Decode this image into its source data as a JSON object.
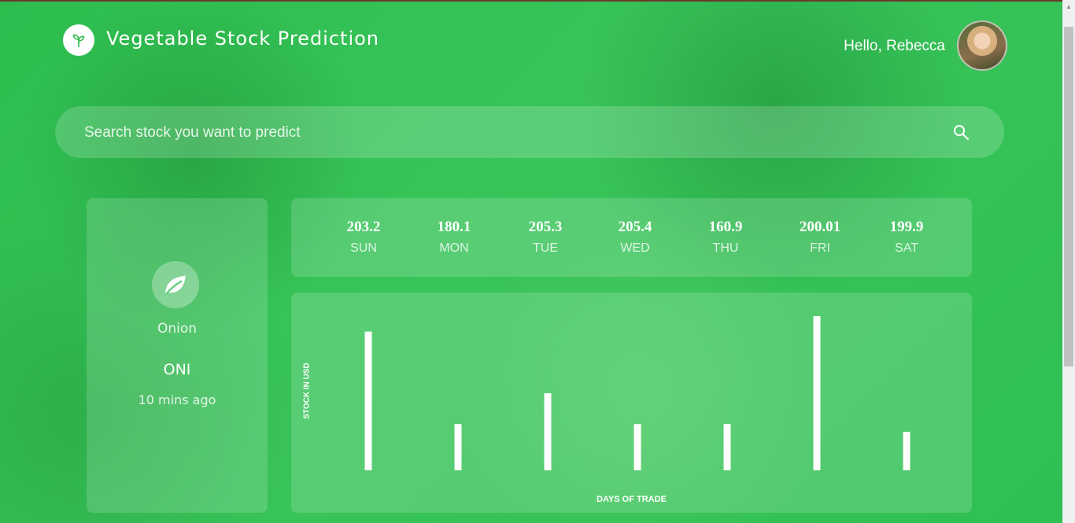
{
  "header": {
    "app_title": "Vegetable Stock Prediction",
    "logo_icon": "sprout-icon",
    "greeting": "Hello, Rebecca"
  },
  "search": {
    "placeholder": "Search stock you want to predict",
    "icon": "search-icon"
  },
  "stock": {
    "icon": "leaf-icon",
    "name": "Onion",
    "code": "ONI",
    "updated": "10 mins ago"
  },
  "days": [
    {
      "value": "203.2",
      "label": "SUN"
    },
    {
      "value": "180.1",
      "label": "MON"
    },
    {
      "value": "205.3",
      "label": "TUE"
    },
    {
      "value": "205.4",
      "label": "WED"
    },
    {
      "value": "160.9",
      "label": "THU"
    },
    {
      "value": "200.01",
      "label": "FRI"
    },
    {
      "value": "199.9",
      "label": "SAT"
    }
  ],
  "chart_data": {
    "type": "bar",
    "categories": [
      "SUN",
      "MON",
      "TUE",
      "WED",
      "THU",
      "FRI",
      "SAT"
    ],
    "values": [
      180,
      60,
      100,
      60,
      60,
      200,
      50
    ],
    "title": "",
    "xlabel": "DAYS OF TRADE",
    "ylabel": "STOCK IN USD",
    "ylim": [
      0,
      200
    ],
    "grid": false,
    "bar_color": "#ffffff"
  },
  "colors": {
    "background_green": "#34c155",
    "card_overlay": "rgba(255,255,255,0.16)",
    "text": "#ffffff"
  }
}
